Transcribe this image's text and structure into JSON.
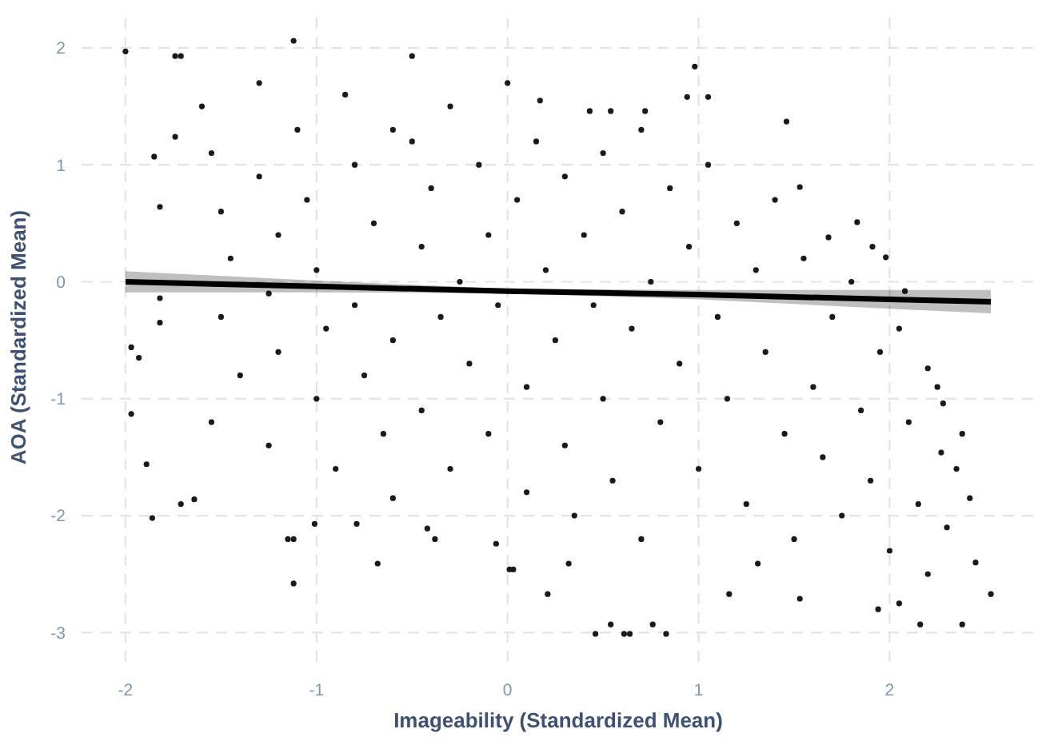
{
  "chart_data": {
    "type": "scatter",
    "xlabel": "Imageability (Standardized Mean)",
    "ylabel": "AOA (Standardized Mean)",
    "xlim": [
      -2.23,
      2.76
    ],
    "ylim": [
      -3.25,
      2.3
    ],
    "xticks": [
      -2,
      -1,
      0,
      1,
      2
    ],
    "yticks": [
      -3,
      -2,
      -1,
      0,
      1,
      2
    ],
    "grid": true,
    "marker": "circle",
    "series": [
      {
        "color": "#1a1a1a",
        "x": [
          -2.0,
          -1.12,
          -0.5,
          -1.74,
          -1.71,
          -1.85,
          -1.82,
          -1.74,
          -1.97,
          -1.93,
          -1.82,
          -1.82,
          0.98,
          0.94,
          1.05,
          1.46,
          0.17,
          0.43,
          0.54,
          0.72,
          1.83,
          1.91,
          1.98,
          2.08,
          2.2,
          1.53,
          1.68,
          -1.97,
          -1.86,
          -1.12,
          -0.68,
          0.01,
          -0.06,
          -1.15,
          -1.12,
          -1.01,
          -0.79,
          -1.71,
          -1.64,
          -0.42,
          -0.38,
          -0.6,
          -1.89,
          0.46,
          0.61,
          0.64,
          0.83,
          0.54,
          0.76,
          2.53,
          2.16,
          2.38,
          1.94,
          2.05,
          0.21,
          1.16,
          1.53,
          2.42,
          2.27,
          2.38,
          2.28,
          0.32,
          1.31,
          0.03,
          -1.6,
          -1.55,
          -1.5,
          -1.45,
          -1.5,
          -1.4,
          -1.55,
          -1.3,
          -1.3,
          -1.25,
          -1.25,
          -1.2,
          -1.2,
          -1.1,
          -1.05,
          -1.0,
          -0.95,
          -1.0,
          -0.9,
          -0.85,
          -0.8,
          -0.8,
          -0.75,
          -0.7,
          -0.65,
          -0.6,
          -0.6,
          -0.5,
          -0.45,
          -0.45,
          -0.4,
          -0.35,
          -0.3,
          -0.3,
          -0.25,
          -0.2,
          -0.15,
          -0.1,
          -0.1,
          -0.05,
          0.0,
          0.05,
          0.1,
          0.1,
          0.15,
          0.2,
          0.25,
          0.3,
          0.3,
          0.35,
          0.4,
          0.45,
          0.5,
          0.5,
          0.55,
          0.6,
          0.65,
          0.7,
          0.7,
          0.75,
          0.8,
          0.85,
          0.9,
          0.95,
          1.0,
          1.05,
          1.1,
          1.15,
          1.2,
          1.25,
          1.3,
          1.35,
          1.4,
          1.45,
          1.5,
          1.55,
          1.6,
          1.65,
          1.7,
          1.75,
          1.8,
          1.85,
          1.9,
          1.95,
          2.0,
          2.05,
          2.1,
          2.15,
          2.2,
          2.25,
          2.3,
          2.35,
          2.45
        ],
        "values": [
          1.97,
          2.06,
          1.93,
          1.93,
          1.93,
          1.07,
          0.64,
          1.24,
          -0.56,
          -0.65,
          -0.14,
          -0.35,
          1.84,
          1.58,
          1.58,
          1.37,
          1.55,
          1.46,
          1.46,
          1.46,
          0.51,
          0.3,
          0.21,
          -0.08,
          -0.74,
          0.81,
          0.38,
          -1.13,
          -2.02,
          -2.58,
          -2.41,
          -2.46,
          -2.24,
          -2.2,
          -2.2,
          -2.07,
          -2.07,
          -1.9,
          -1.86,
          -2.11,
          -2.2,
          -1.85,
          -1.56,
          -3.01,
          -3.01,
          -3.01,
          -3.01,
          -2.93,
          -2.93,
          -2.67,
          -2.93,
          -2.93,
          -2.8,
          -2.75,
          -2.67,
          -2.67,
          -2.71,
          -1.85,
          -1.46,
          -1.3,
          -1.04,
          -2.41,
          -2.41,
          -2.46,
          1.5,
          1.1,
          0.6,
          0.2,
          -0.3,
          -0.8,
          -1.2,
          1.7,
          0.9,
          -0.1,
          -1.4,
          0.4,
          -0.6,
          1.3,
          0.7,
          0.1,
          -0.4,
          -1.0,
          -1.6,
          1.6,
          1.0,
          -0.2,
          -0.8,
          0.5,
          -1.3,
          1.3,
          -0.5,
          1.2,
          0.3,
          -1.1,
          0.8,
          -0.3,
          1.5,
          -1.6,
          0.0,
          -0.7,
          1.0,
          0.4,
          -1.3,
          -0.2,
          1.7,
          0.7,
          -0.9,
          -1.8,
          1.2,
          0.1,
          -0.5,
          0.9,
          -1.4,
          -2.0,
          0.4,
          -0.2,
          1.1,
          -1.0,
          -1.7,
          0.6,
          -0.4,
          1.3,
          -2.2,
          0.0,
          -1.2,
          0.8,
          -0.7,
          0.3,
          -1.6,
          1.0,
          -0.3,
          -1.0,
          0.5,
          -1.9,
          0.1,
          -0.6,
          0.7,
          -1.3,
          -2.2,
          0.2,
          -0.9,
          -1.5,
          -0.3,
          -2.0,
          0.0,
          -1.1,
          -1.7,
          -0.6,
          -2.3,
          -0.4,
          -1.2,
          -1.9,
          -2.5,
          -0.9,
          -2.1,
          -1.6,
          -2.4
        ]
      },
      {
        "type": "line",
        "marker": "none",
        "color": "#000000",
        "x": [
          -2,
          -1,
          0,
          1,
          2,
          2.53
        ],
        "values": [
          0.0,
          -0.04,
          -0.08,
          -0.11,
          -0.15,
          -0.17
        ],
        "lower": [
          -0.09,
          -0.09,
          -0.1,
          -0.15,
          -0.23,
          -0.27
        ],
        "upper": [
          0.09,
          0.01,
          -0.06,
          -0.07,
          -0.07,
          -0.07
        ]
      }
    ]
  }
}
